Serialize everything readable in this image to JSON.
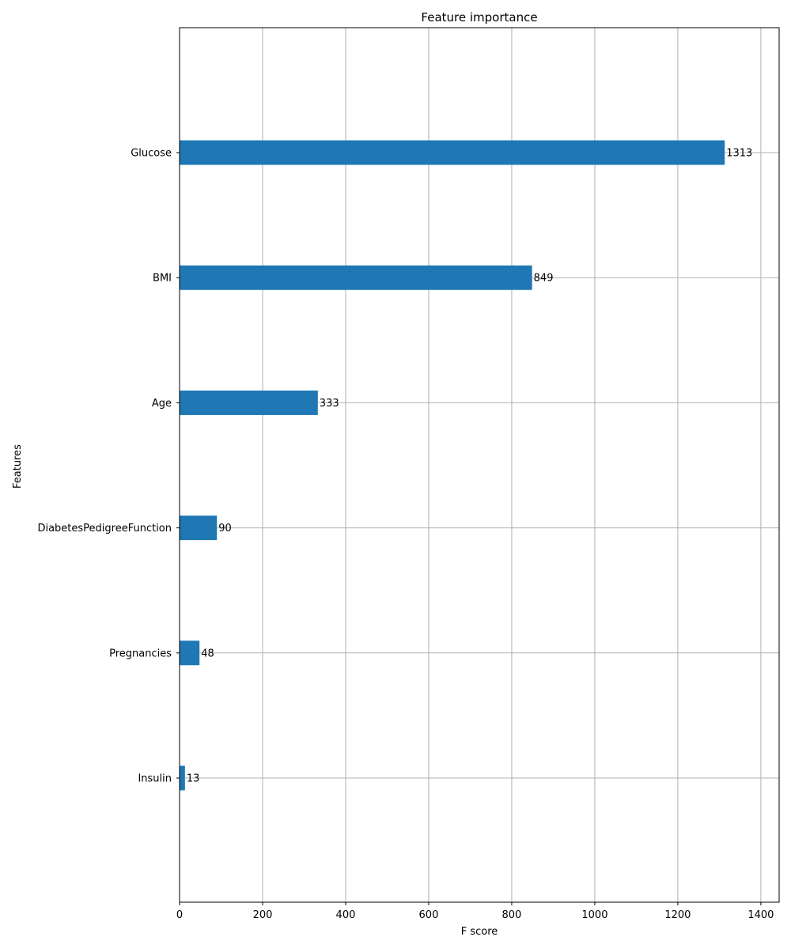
{
  "chart_data": {
    "type": "bar",
    "orientation": "horizontal",
    "title": "Feature importance",
    "xlabel": "F score",
    "ylabel": "Features",
    "categories": [
      "Glucose",
      "BMI",
      "Age",
      "DiabetesPedigreeFunction",
      "Pregnancies",
      "Insulin"
    ],
    "values": [
      1313,
      849,
      333,
      90,
      48,
      13
    ],
    "xlim": [
      0,
      1444
    ],
    "xticks": [
      0,
      200,
      400,
      600,
      800,
      1000,
      1200,
      1400
    ],
    "grid": true,
    "legend": "none",
    "bar_color": "#1f77b4",
    "grid_color": "#b0b0b0"
  }
}
